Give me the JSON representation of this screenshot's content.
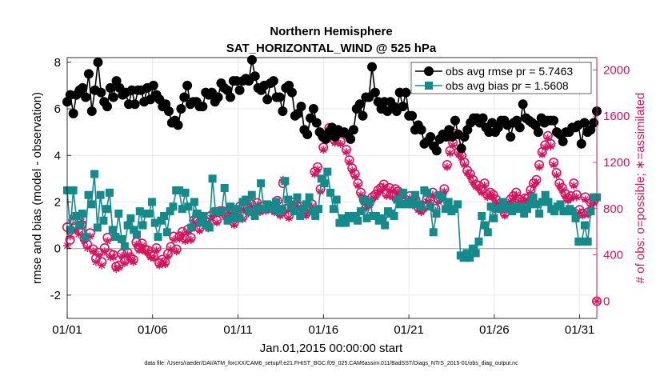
{
  "chart_data": {
    "type": "line",
    "title": "Northern Hemisphere",
    "subtitle": "SAT_HORIZONTAL_WIND @ 525 hPa",
    "xlabel": "Jan.01,2015 00:00:00 start",
    "ylabel": "rmse and bias (model - observation)",
    "ylabel_right": "# of obs: o=possible; ∗=assimilated",
    "footer": "data file: /Users/raeder/DAI/ATM_forcXX/CAM6_setup/f.e21.FHIST_BGC.f09_025.CAM6assim.011/BadSST/Diags_NTrS_2015-01/obs_diag_output.nc",
    "ylim": [
      -3,
      8.2
    ],
    "ylim_right": [
      -148.8,
      2106.7
    ],
    "xlim": [
      0.0,
      31.0
    ],
    "grid": true,
    "legend_position": "top-right",
    "x_tick_labels": [
      "01/01",
      "01/06",
      "01/11",
      "01/16",
      "01/21",
      "01/26",
      "01/31"
    ],
    "x_tick_values": [
      0,
      5,
      10,
      15,
      20,
      25,
      30
    ],
    "y_ticks": [
      -2,
      0,
      2,
      4,
      6,
      8
    ],
    "y_ticks_right": [
      0,
      400,
      800,
      1200,
      1600,
      2000
    ],
    "colors": {
      "rmse": "#000000",
      "bias": "#158a8a",
      "obs": "#d6135e",
      "zero_line": "#a6a6a6"
    },
    "series": [
      {
        "name": "obs avg rmse pr = 5.7463",
        "axis": "left",
        "marker": "filled-circle",
        "values": [
          6.3,
          6.6,
          5.8,
          6.6,
          6.8,
          6.9,
          6.5,
          7.5,
          5.9,
          6.8,
          8.0,
          6.7,
          6.3,
          6.1,
          6.9,
          6.5,
          7.2,
          6.9,
          6.6,
          6.7,
          6.2,
          6.8,
          6.2,
          6.8,
          6.8,
          6.3,
          6.9,
          6.4,
          7.0,
          6.6,
          6.4,
          6.1,
          6.2,
          5.9,
          5.4,
          5.5,
          5.3,
          6.0,
          6.5,
          7.0,
          6.2,
          6.3,
          6.3,
          6.1,
          6.1,
          6.7,
          6.6,
          6.7,
          6.3,
          6.5,
          7.1,
          6.9,
          6.8,
          6.5,
          7.2,
          7.2,
          6.8,
          7.2,
          7.3,
          7.2,
          8.1,
          7.4,
          6.9,
          6.8,
          7.0,
          6.4,
          7.1,
          7.2,
          6.5,
          6.5,
          5.9,
          6.9,
          7.0,
          6.7,
          5.7,
          5.8,
          6.1,
          5.1,
          4.9,
          5.6,
          6.0,
          5.4,
          5.0,
          4.8,
          4.7,
          5.0,
          5.2,
          4.8,
          5.1,
          5.0,
          5.0,
          4.9,
          4.7,
          5.1,
          6.0,
          6.2,
          5.7,
          6.5,
          6.5,
          7.8,
          6.7,
          6.3,
          6.0,
          6.3,
          5.9,
          6.3,
          6.1,
          5.9,
          6.7,
          6.1,
          6.7,
          5.7,
          5.7,
          5.1,
          5.3,
          5.1,
          4.5,
          4.6,
          4.8,
          4.4,
          4.2,
          4.7,
          4.9,
          4.8,
          5.1,
          4.8,
          5.5,
          4.9,
          4.3,
          4.8,
          5.1,
          5.4,
          5.6,
          5.6,
          5.4,
          5.6,
          5.2,
          5.0,
          5.4,
          5.0,
          5.2,
          5.5,
          5.5,
          5.3,
          4.8,
          5.4,
          5.5,
          5.2,
          6.2,
          5.6,
          5.5,
          5.4,
          5.3,
          5.0,
          5.6,
          5.4,
          5.5,
          5.5,
          5.5,
          5.0,
          4.9,
          4.6,
          5.0,
          5.0,
          5.2,
          5.2,
          5.3,
          4.5,
          5.4,
          5.0,
          5.1,
          5.4,
          5.9
        ]
      },
      {
        "name": "obs avg bias pr = 1.5608",
        "axis": "left",
        "marker": "filled-square",
        "values": [
          2.5,
          0.8,
          2.5,
          1.4,
          1.0,
          1.5,
          0.5,
          2.3,
          1.9,
          3.2,
          0.9,
          2.3,
          1.2,
          1.7,
          2.4,
          0.8,
          0.5,
          1.5,
          0.4,
          0.1,
          1.0,
          1.3,
          0.8,
          0.6,
          1.6,
          1.0,
          1.5,
          1.5,
          2.0,
          1.1,
          0.5,
          1.2,
          1.4,
          0.7,
          1.6,
          1.8,
          2.5,
          2.5,
          1.7,
          2.4,
          1.8,
          0.9,
          2.0,
          1.5,
          1.1,
          1.4,
          1.0,
          0.9,
          3.0,
          1.6,
          1.6,
          1.6,
          2.6,
          1.2,
          1.8,
          1.3,
          1.7,
          1.3,
          2.0,
          2.1,
          1.6,
          2.3,
          1.4,
          1.7,
          2.8,
          1.7,
          1.9,
          1.8,
          1.7,
          2.0,
          1.6,
          1.7,
          2.9,
          2.1,
          1.8,
          1.6,
          2.2,
          1.4,
          1.7,
          1.9,
          2.2,
          1.6,
          1.4,
          1.7,
          3.0,
          2.8,
          3.3,
          2.4,
          1.7,
          2.1,
          1.1,
          1.3,
          1.1,
          1.4,
          1.3,
          1.4,
          1.2,
          1.6,
          2.1,
          1.3,
          2.0,
          1.4,
          1.4,
          1.2,
          1.3,
          1.0,
          1.6,
          1.5,
          1.4,
          2.1,
          1.9,
          2.4,
          1.9,
          2.0,
          1.9,
          2.3,
          1.9,
          1.8,
          2.5,
          2.4,
          1.8,
          0.7,
          1.5,
          2.3,
          2.2,
          1.7,
          2.0,
          1.6,
          1.7,
          1.9,
          -0.3,
          -0.4,
          -0.2,
          -0.4,
          0.0,
          -0.2,
          0.3,
          1.4,
          1.0,
          0.7,
          1.8,
          1.3,
          1.7,
          1.7,
          2.0,
          1.8,
          1.7,
          1.6,
          1.8,
          1.7,
          1.8,
          1.5,
          1.7,
          1.9,
          2.2,
          1.9,
          1.5,
          2.0,
          2.3,
          2.0,
          1.7,
          1.6,
          1.8,
          1.9,
          1.6,
          1.6,
          1.7,
          1.6,
          1.3,
          0.3,
          0.3,
          1.0,
          0.3,
          1.6,
          2.2,
          2.2
        ]
      },
      {
        "name": "possible",
        "axis": "right",
        "marker": "open-circle",
        "values": [
          640,
          530,
          700,
          650,
          610,
          660,
          540,
          490,
          590,
          450,
          370,
          420,
          340,
          460,
          550,
          410,
          400,
          300,
          310,
          410,
          350,
          420,
          380,
          360,
          510,
          460,
          500,
          450,
          440,
          400,
          390,
          460,
          330,
          360,
          340,
          410,
          470,
          560,
          450,
          560,
          600,
          540,
          620,
          550,
          700,
          690,
          630,
          700,
          690,
          650,
          740,
          770,
          700,
          780,
          780,
          750,
          760,
          780,
          680,
          770,
          820,
          730,
          810,
          780,
          840,
          790,
          850,
          790,
          820,
          800,
          830,
          810,
          790,
          870,
          760,
          1020,
          800,
          740,
          830,
          860,
          820,
          820,
          790,
          760,
          790,
          840,
          1120,
          1160,
          970,
          1330,
          1420,
          1500,
          1480,
          1390,
          1470,
          1380,
          1460,
          1310,
          1220,
          1150,
          1100,
          1020,
          940,
          880,
          830,
          850,
          900,
          920,
          960,
          980,
          1010,
          930,
          980,
          920,
          970,
          950,
          930,
          860,
          870,
          910,
          850,
          880,
          810,
          790,
          820,
          880,
          870,
          940,
          800,
          880,
          910,
          970,
          1180,
          1300,
          1370,
          1450,
          1290,
          1260,
          1200,
          1130,
          1100,
          1050,
          1010,
          1000,
          960,
          1020,
          920,
          940,
          920,
          880,
          840,
          810,
          760,
          830,
          880,
          910,
          940,
          880,
          860,
          890,
          890,
          960,
          1020,
          1050,
          1180,
          1290,
          1350,
          1430,
          1360,
          1200,
          1110,
          1020,
          980,
          930,
          890,
          910,
          1020,
          920,
          790,
          760,
          900,
          770,
          850,
          870,
          0
        ]
      },
      {
        "name": "assimilated",
        "axis": "right",
        "marker": "asterisk",
        "values": [
          480,
          560,
          720,
          620,
          580,
          690,
          520,
          460,
          560,
          430,
          340,
          400,
          310,
          430,
          520,
          380,
          380,
          280,
          290,
          390,
          330,
          400,
          360,
          340,
          490,
          440,
          480,
          430,
          420,
          380,
          370,
          440,
          310,
          340,
          320,
          390,
          450,
          530,
          430,
          540,
          580,
          520,
          600,
          530,
          680,
          670,
          610,
          680,
          670,
          630,
          720,
          750,
          680,
          760,
          760,
          730,
          740,
          760,
          660,
          750,
          800,
          710,
          790,
          760,
          820,
          770,
          830,
          770,
          800,
          780,
          810,
          790,
          770,
          850,
          740,
          1050,
          780,
          720,
          810,
          840,
          800,
          800,
          770,
          740,
          770,
          820,
          1100,
          1140,
          950,
          1310,
          1400,
          1480,
          1460,
          1370,
          1450,
          1360,
          1440,
          1290,
          1200,
          1130,
          1080,
          1000,
          920,
          860,
          810,
          830,
          880,
          900,
          940,
          960,
          990,
          910,
          960,
          900,
          950,
          930,
          910,
          840,
          850,
          890,
          830,
          860,
          790,
          770,
          800,
          860,
          850,
          920,
          780,
          860,
          890,
          950,
          1160,
          1280,
          1350,
          1430,
          1270,
          1240,
          1180,
          1110,
          1080,
          1030,
          990,
          980,
          940,
          1000,
          900,
          920,
          900,
          860,
          820,
          790,
          740,
          810,
          860,
          890,
          920,
          860,
          840,
          870,
          870,
          940,
          1000,
          1030,
          1160,
          1270,
          1330,
          1410,
          1340,
          1180,
          1090,
          1000,
          960,
          910,
          870,
          890,
          1000,
          900,
          770,
          740,
          880,
          750,
          830,
          850,
          0
        ]
      }
    ]
  }
}
